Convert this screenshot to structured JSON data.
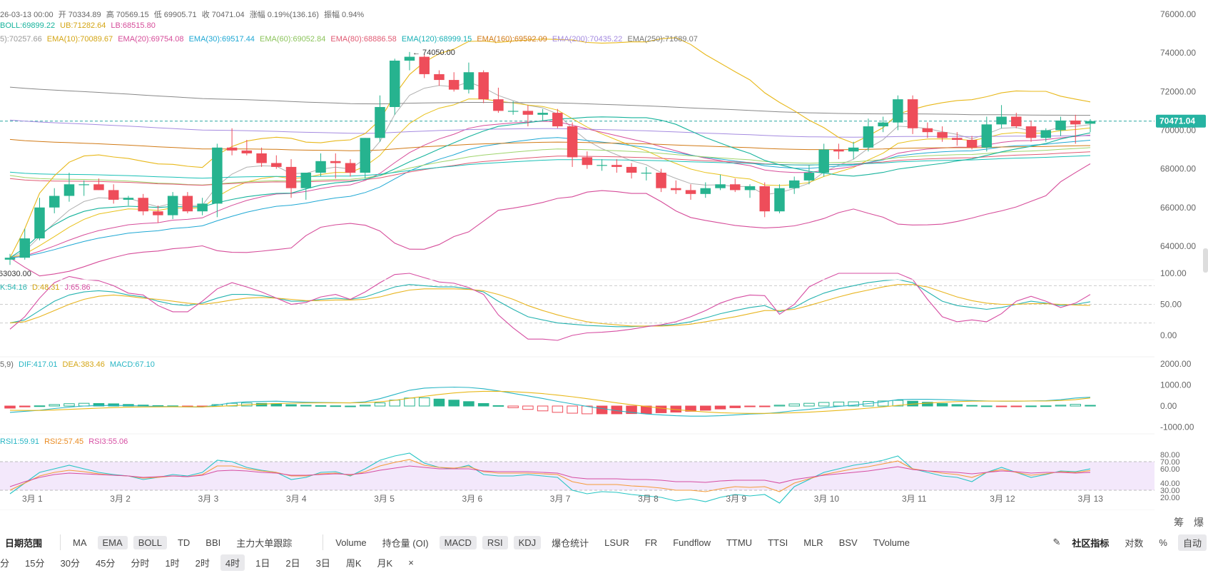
{
  "info": {
    "ohlc": [
      "26-03-13 00:00",
      "开 70334.89",
      "高 70569.15",
      "低 69905.71",
      "收 70471.04",
      "涨幅 0.19%(136.16)",
      "振幅 0.94%"
    ],
    "boll": [
      "BOLL:69899.22",
      "UB:71282.64",
      "LB:68515.80"
    ],
    "ema": [
      "5):70257.66",
      "EMA(10):70089.67",
      "EMA(20):69754.08",
      "EMA(30):69517.44",
      "EMA(60):69052.84",
      "EMA(80):68886.58",
      "EMA(120):68999.15",
      "EMA(160):69592.09",
      "EMA(200):70435.22",
      "EMA(250):71689.07"
    ],
    "kdj": [
      "K:54.16",
      "D:48.31",
      "J:65.86"
    ],
    "macd": [
      "5,9)",
      "DIF:417.01",
      "DEA:383.46",
      "MACD:67.10"
    ],
    "rsi": [
      "RSI1:59.91",
      "RSI2:57.45",
      "RSI3:55.06"
    ]
  },
  "colors": {
    "up": "#26b38f",
    "down": "#ee4d5a",
    "ema": [
      "#b0b0b0",
      "#e8c11a",
      "#d64d9a",
      "#1fa8d4",
      "#9fd46c",
      "#e05a73",
      "#19c0b6",
      "#d17a16",
      "#a58be0",
      "#888888"
    ],
    "boll": [
      "#17b39c",
      "#e8b81a",
      "#d64d9a"
    ],
    "kdj": [
      "#26b3b0",
      "#e8b520",
      "#d64da2"
    ],
    "macd": [
      "#27b5c4",
      "#e8b81a"
    ],
    "rsi": [
      "#27c5c4",
      "#f59b3a",
      "#d64da2"
    ]
  },
  "price_labels": {
    "current": "70471.04",
    "high_mark": "74050.00",
    "low_mark": "63030.00"
  },
  "axes": {
    "price_ticks": [
      "76000.00",
      "74000.00",
      "72000.00",
      "70000.00",
      "68000.00",
      "66000.00",
      "64000.00"
    ],
    "kdj_ticks": [
      "100.00",
      "50.00",
      "0.00"
    ],
    "macd_ticks": [
      "2000.00",
      "1000.00",
      "0.00",
      "-1000.00"
    ],
    "rsi_ticks": [
      "80.00",
      "70.00",
      "60.00",
      "40.00",
      "30.00",
      "20.00"
    ],
    "dates": [
      "3月 1",
      "3月 2",
      "3月 3",
      "3月 4",
      "3月 5",
      "3月 6",
      "3月 7",
      "3月 8",
      "3月 9",
      "3月 10",
      "3月 11",
      "3月 12",
      "3月 13"
    ]
  },
  "chart_data": {
    "type": "candlestick",
    "interval": "4时",
    "candles": [
      {
        "o": 63300,
        "h": 63600,
        "l": 63030,
        "c": 63400
      },
      {
        "o": 63400,
        "h": 64900,
        "l": 63300,
        "c": 64400
      },
      {
        "o": 64400,
        "h": 66500,
        "l": 64300,
        "c": 66000
      },
      {
        "o": 66000,
        "h": 67000,
        "l": 65700,
        "c": 66600
      },
      {
        "o": 66600,
        "h": 67800,
        "l": 66300,
        "c": 67200
      },
      {
        "o": 67200,
        "h": 67400,
        "l": 66600,
        "c": 67200
      },
      {
        "o": 67200,
        "h": 67500,
        "l": 66900,
        "c": 66900
      },
      {
        "o": 66900,
        "h": 67200,
        "l": 66200,
        "c": 66400
      },
      {
        "o": 66400,
        "h": 66600,
        "l": 66100,
        "c": 66500
      },
      {
        "o": 66500,
        "h": 66700,
        "l": 65600,
        "c": 65800
      },
      {
        "o": 65800,
        "h": 66100,
        "l": 65200,
        "c": 65600
      },
      {
        "o": 65600,
        "h": 66800,
        "l": 65400,
        "c": 66600
      },
      {
        "o": 66600,
        "h": 66800,
        "l": 65700,
        "c": 65800
      },
      {
        "o": 65800,
        "h": 66500,
        "l": 65600,
        "c": 66200
      },
      {
        "o": 66200,
        "h": 69300,
        "l": 65500,
        "c": 69100
      },
      {
        "o": 69100,
        "h": 70100,
        "l": 68700,
        "c": 68950
      },
      {
        "o": 68950,
        "h": 69500,
        "l": 68700,
        "c": 68800
      },
      {
        "o": 68800,
        "h": 69100,
        "l": 68100,
        "c": 68300
      },
      {
        "o": 68300,
        "h": 68700,
        "l": 68000,
        "c": 68100
      },
      {
        "o": 68100,
        "h": 68500,
        "l": 66500,
        "c": 67000
      },
      {
        "o": 67000,
        "h": 67800,
        "l": 66400,
        "c": 67800
      },
      {
        "o": 67800,
        "h": 68800,
        "l": 67600,
        "c": 68400
      },
      {
        "o": 68400,
        "h": 68800,
        "l": 67500,
        "c": 68300
      },
      {
        "o": 68300,
        "h": 68500,
        "l": 67600,
        "c": 67800
      },
      {
        "o": 67800,
        "h": 69600,
        "l": 67500,
        "c": 69600
      },
      {
        "o": 69600,
        "h": 71800,
        "l": 69400,
        "c": 71200
      },
      {
        "o": 71200,
        "h": 73700,
        "l": 70800,
        "c": 73600
      },
      {
        "o": 73600,
        "h": 74050,
        "l": 73100,
        "c": 73800
      },
      {
        "o": 73800,
        "h": 73900,
        "l": 72700,
        "c": 72900
      },
      {
        "o": 72900,
        "h": 73100,
        "l": 72300,
        "c": 72600
      },
      {
        "o": 72600,
        "h": 73000,
        "l": 72000,
        "c": 72100
      },
      {
        "o": 72100,
        "h": 73500,
        "l": 71900,
        "c": 73000
      },
      {
        "o": 73000,
        "h": 73100,
        "l": 71400,
        "c": 71600
      },
      {
        "o": 71600,
        "h": 72200,
        "l": 70900,
        "c": 71000
      },
      {
        "o": 71000,
        "h": 71500,
        "l": 70800,
        "c": 71000
      },
      {
        "o": 71000,
        "h": 71300,
        "l": 70200,
        "c": 70800
      },
      {
        "o": 70800,
        "h": 71100,
        "l": 70500,
        "c": 70900
      },
      {
        "o": 70900,
        "h": 71100,
        "l": 70100,
        "c": 70200
      },
      {
        "o": 70200,
        "h": 70400,
        "l": 68100,
        "c": 68600
      },
      {
        "o": 68600,
        "h": 68900,
        "l": 68000,
        "c": 68200
      },
      {
        "o": 68200,
        "h": 68500,
        "l": 67900,
        "c": 68200
      },
      {
        "o": 68200,
        "h": 68500,
        "l": 67800,
        "c": 68100
      },
      {
        "o": 68100,
        "h": 68300,
        "l": 67500,
        "c": 67800
      },
      {
        "o": 67800,
        "h": 68100,
        "l": 67400,
        "c": 67800
      },
      {
        "o": 67800,
        "h": 68000,
        "l": 66800,
        "c": 67000
      },
      {
        "o": 67000,
        "h": 67400,
        "l": 66700,
        "c": 66900
      },
      {
        "o": 66900,
        "h": 67200,
        "l": 66400,
        "c": 66700
      },
      {
        "o": 66700,
        "h": 67300,
        "l": 66500,
        "c": 67000
      },
      {
        "o": 67000,
        "h": 67700,
        "l": 66900,
        "c": 67200
      },
      {
        "o": 67200,
        "h": 67500,
        "l": 66800,
        "c": 66900
      },
      {
        "o": 66900,
        "h": 67200,
        "l": 66500,
        "c": 67100
      },
      {
        "o": 67100,
        "h": 67300,
        "l": 65500,
        "c": 65800
      },
      {
        "o": 65800,
        "h": 67200,
        "l": 65700,
        "c": 67000
      },
      {
        "o": 67000,
        "h": 67600,
        "l": 66700,
        "c": 67400
      },
      {
        "o": 67400,
        "h": 68200,
        "l": 67200,
        "c": 67800
      },
      {
        "o": 67800,
        "h": 69300,
        "l": 67600,
        "c": 69000
      },
      {
        "o": 69000,
        "h": 69300,
        "l": 68500,
        "c": 68900
      },
      {
        "o": 68900,
        "h": 69400,
        "l": 68500,
        "c": 69100
      },
      {
        "o": 69100,
        "h": 70600,
        "l": 68900,
        "c": 70200
      },
      {
        "o": 70200,
        "h": 70700,
        "l": 69900,
        "c": 70400
      },
      {
        "o": 70400,
        "h": 71800,
        "l": 70000,
        "c": 71600
      },
      {
        "o": 71600,
        "h": 71800,
        "l": 69800,
        "c": 70100
      },
      {
        "o": 70100,
        "h": 70400,
        "l": 69600,
        "c": 69900
      },
      {
        "o": 69900,
        "h": 70200,
        "l": 69400,
        "c": 69600
      },
      {
        "o": 69600,
        "h": 69900,
        "l": 69200,
        "c": 69500
      },
      {
        "o": 69500,
        "h": 69700,
        "l": 69000,
        "c": 69100
      },
      {
        "o": 69100,
        "h": 70700,
        "l": 68900,
        "c": 70300
      },
      {
        "o": 70300,
        "h": 71300,
        "l": 70100,
        "c": 70700
      },
      {
        "o": 70700,
        "h": 70900,
        "l": 70100,
        "c": 70200
      },
      {
        "o": 70200,
        "h": 70500,
        "l": 69400,
        "c": 69600
      },
      {
        "o": 69600,
        "h": 70100,
        "l": 69400,
        "c": 70000
      },
      {
        "o": 70000,
        "h": 70700,
        "l": 69700,
        "c": 70500
      },
      {
        "o": 70500,
        "h": 70800,
        "l": 69300,
        "c": 70300
      },
      {
        "o": 70334.89,
        "h": 70569.15,
        "l": 69905.71,
        "c": 70471.04
      }
    ],
    "kdj": {
      "k": [
        20,
        25,
        40,
        55,
        65,
        70,
        72,
        70,
        65,
        62,
        55,
        50,
        48,
        52,
        60,
        66,
        66,
        64,
        60,
        55,
        55,
        58,
        60,
        58,
        62,
        70,
        78,
        82,
        80,
        78,
        78,
        75,
        70,
        55,
        42,
        30,
        25,
        20,
        18,
        16,
        15,
        14,
        14,
        15,
        16,
        18,
        22,
        28,
        35,
        40,
        45,
        48,
        38,
        45,
        58,
        68,
        75,
        80,
        85,
        88,
        90,
        85,
        70,
        55,
        48,
        45,
        42,
        45,
        50,
        55,
        52,
        48,
        50,
        54.16
      ],
      "d": [
        20,
        22,
        30,
        40,
        50,
        58,
        63,
        65,
        63,
        60,
        58,
        55,
        52,
        50,
        53,
        57,
        60,
        61,
        60,
        58,
        56,
        56,
        57,
        57,
        58,
        62,
        68,
        73,
        75,
        75,
        75,
        74,
        72,
        66,
        58,
        48,
        40,
        33,
        27,
        22,
        19,
        17,
        15,
        15,
        15,
        16,
        18,
        22,
        26,
        30,
        35,
        40,
        40,
        42,
        48,
        55,
        62,
        68,
        73,
        78,
        82,
        82,
        78,
        70,
        62,
        56,
        52,
        50,
        50,
        51,
        51,
        50,
        49,
        48.31
      ],
      "j": [
        10,
        30,
        60,
        85,
        95,
        90,
        88,
        80,
        68,
        65,
        48,
        38,
        38,
        55,
        75,
        85,
        78,
        70,
        60,
        50,
        53,
        62,
        66,
        58,
        70,
        85,
        98,
        100,
        93,
        86,
        84,
        77,
        66,
        33,
        12,
        -6,
        -6,
        -8,
        0,
        4,
        5,
        7,
        10,
        14,
        17,
        22,
        30,
        40,
        52,
        60,
        65,
        64,
        34,
        50,
        78,
        90,
        100,
        100,
        100,
        100,
        100,
        90,
        58,
        30,
        22,
        25,
        22,
        35,
        55,
        63,
        55,
        45,
        52,
        65.86
      ]
    },
    "macd": {
      "dif": [
        -300,
        -250,
        -200,
        -120,
        -50,
        0,
        20,
        30,
        20,
        0,
        -20,
        -30,
        -40,
        -50,
        50,
        150,
        200,
        220,
        230,
        200,
        180,
        170,
        160,
        150,
        200,
        350,
        550,
        750,
        850,
        880,
        900,
        880,
        820,
        720,
        600,
        480,
        360,
        220,
        100,
        -20,
        -120,
        -220,
        -300,
        -380,
        -420,
        -460,
        -480,
        -480,
        -460,
        -420,
        -380,
        -360,
        -300,
        -220,
        -160,
        -80,
        -20,
        40,
        120,
        200,
        300,
        320,
        320,
        300,
        280,
        260,
        240,
        230,
        230,
        240,
        250,
        300,
        380,
        417.01
      ],
      "dea": [
        -200,
        -210,
        -210,
        -190,
        -160,
        -130,
        -100,
        -75,
        -55,
        -45,
        -40,
        -38,
        -38,
        -40,
        -20,
        20,
        55,
        90,
        120,
        135,
        145,
        150,
        150,
        150,
        160,
        200,
        270,
        370,
        460,
        550,
        620,
        670,
        700,
        700,
        680,
        640,
        590,
        520,
        440,
        350,
        250,
        150,
        60,
        -20,
        -100,
        -170,
        -230,
        -280,
        -320,
        -340,
        -350,
        -350,
        -340,
        -320,
        -290,
        -250,
        -210,
        -160,
        -100,
        -40,
        30,
        90,
        140,
        180,
        210,
        230,
        235,
        235,
        235,
        236,
        240,
        260,
        300,
        383.46
      ]
    },
    "rsi": {
      "rsi1": [
        25,
        40,
        55,
        60,
        65,
        60,
        55,
        52,
        50,
        45,
        48,
        52,
        50,
        55,
        72,
        70,
        62,
        58,
        55,
        45,
        48,
        55,
        56,
        50,
        60,
        72,
        78,
        82,
        68,
        62,
        60,
        65,
        52,
        50,
        50,
        52,
        50,
        48,
        30,
        25,
        28,
        27,
        24,
        22,
        20,
        15,
        18,
        14,
        20,
        24,
        22,
        24,
        12,
        35,
        45,
        55,
        60,
        65,
        68,
        72,
        78,
        60,
        55,
        50,
        48,
        42,
        55,
        62,
        55,
        48,
        52,
        57,
        56,
        59.91
      ],
      "rsi2": [
        30,
        40,
        50,
        55,
        58,
        56,
        53,
        51,
        50,
        47,
        48,
        50,
        49,
        52,
        64,
        64,
        60,
        57,
        55,
        50,
        50,
        53,
        54,
        51,
        56,
        64,
        69,
        73,
        65,
        62,
        61,
        63,
        56,
        54,
        54,
        54,
        53,
        52,
        42,
        38,
        38,
        38,
        36,
        35,
        33,
        30,
        30,
        28,
        32,
        35,
        34,
        35,
        28,
        40,
        46,
        52,
        56,
        60,
        63,
        67,
        71,
        60,
        57,
        54,
        52,
        48,
        55,
        59,
        55,
        51,
        53,
        56,
        55,
        57.45
      ],
      "rsi3": [
        35,
        42,
        48,
        52,
        54,
        53,
        52,
        51,
        50,
        48,
        49,
        50,
        49,
        51,
        57,
        58,
        57,
        55,
        54,
        51,
        51,
        52,
        53,
        52,
        54,
        58,
        61,
        64,
        62,
        60,
        60,
        60,
        57,
        56,
        56,
        56,
        55,
        54,
        48,
        46,
        46,
        46,
        45,
        45,
        44,
        42,
        42,
        41,
        43,
        44,
        44,
        44,
        40,
        45,
        48,
        51,
        53,
        55,
        57,
        60,
        63,
        59,
        57,
        56,
        55,
        53,
        55,
        57,
        56,
        54,
        55,
        55,
        54,
        55.06
      ]
    },
    "ylim_price": [
      63000,
      76000
    ]
  },
  "toolbar": {
    "row1_left": [
      "日期范围",
      "MA",
      "EMA",
      "BOLL",
      "TD",
      "BBI",
      "主力大单跟踪"
    ],
    "row1_right": [
      "Volume",
      "持仓量 (OI)",
      "MACD",
      "RSI",
      "KDJ",
      "爆仓统计",
      "LSUR",
      "FR",
      "Fundflow",
      "TTMU",
      "TTSI",
      "MLR",
      "BSV",
      "TVolume"
    ],
    "row1_extra": [
      "社区指标",
      "对数",
      "%",
      "自动"
    ],
    "row2": [
      "分",
      "15分",
      "30分",
      "45分",
      "分时",
      "1时",
      "2时",
      "4时",
      "1日",
      "2日",
      "3日",
      "周K",
      "月K"
    ],
    "row2_close": "×",
    "side_labels": [
      "筹",
      "爆"
    ]
  }
}
